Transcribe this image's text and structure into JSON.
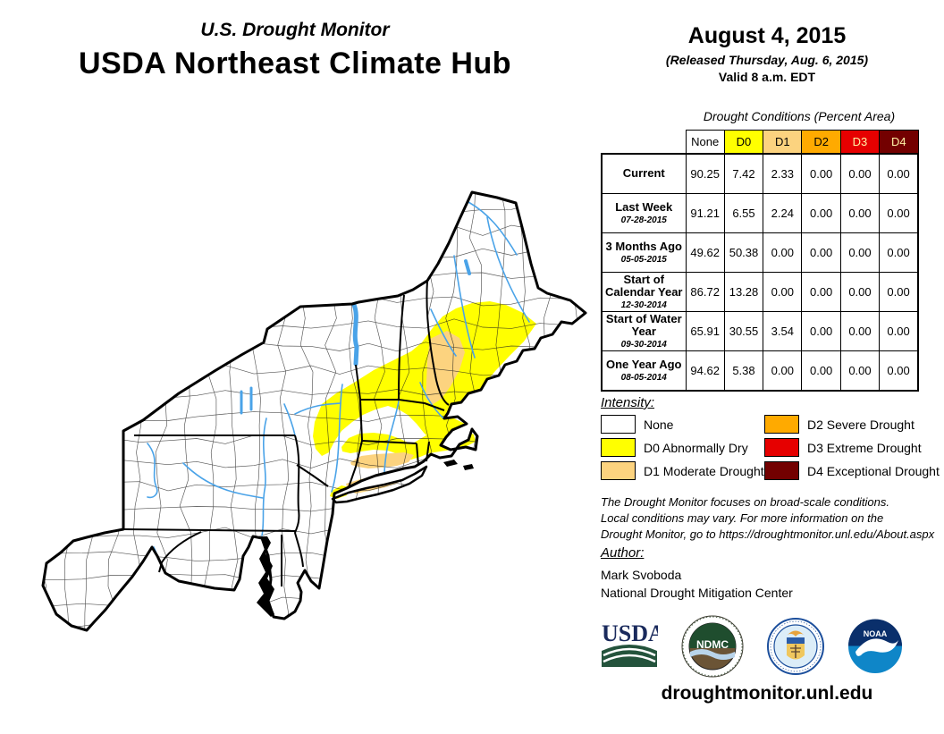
{
  "header": {
    "kicker": "U.S. Drought Monitor",
    "title": "USDA Northeast Climate Hub",
    "date": "August 4, 2015",
    "released": "(Released Thursday, Aug. 6, 2015)",
    "valid": "Valid 8 a.m. EDT"
  },
  "table": {
    "title": "Drought Conditions (Percent Area)",
    "columns": [
      "None",
      "D0",
      "D1",
      "D2",
      "D3",
      "D4"
    ],
    "rows": [
      {
        "label": "Current",
        "date": "",
        "values": [
          "90.25",
          "7.42",
          "2.33",
          "0.00",
          "0.00",
          "0.00"
        ]
      },
      {
        "label": "Last Week",
        "date": "07-28-2015",
        "values": [
          "91.21",
          "6.55",
          "2.24",
          "0.00",
          "0.00",
          "0.00"
        ]
      },
      {
        "label": "3 Months Ago",
        "date": "05-05-2015",
        "values": [
          "49.62",
          "50.38",
          "0.00",
          "0.00",
          "0.00",
          "0.00"
        ]
      },
      {
        "label": "Start of Calendar Year",
        "date": "12-30-2014",
        "values": [
          "86.72",
          "13.28",
          "0.00",
          "0.00",
          "0.00",
          "0.00"
        ]
      },
      {
        "label": "Start of Water Year",
        "date": "09-30-2014",
        "values": [
          "65.91",
          "30.55",
          "3.54",
          "0.00",
          "0.00",
          "0.00"
        ]
      },
      {
        "label": "One Year Ago",
        "date": "08-05-2014",
        "values": [
          "94.62",
          "5.38",
          "0.00",
          "0.00",
          "0.00",
          "0.00"
        ]
      }
    ]
  },
  "legend": {
    "title": "Intensity:",
    "items": [
      {
        "label": "None",
        "color": "#FFFFFF"
      },
      {
        "label": "D0 Abnormally Dry",
        "color": "#FFFF00"
      },
      {
        "label": "D1 Moderate Drought",
        "color": "#FCD37F"
      },
      {
        "label": "D2 Severe Drought",
        "color": "#FFAA00"
      },
      {
        "label": "D3 Extreme Drought",
        "color": "#E60000"
      },
      {
        "label": "D4 Exceptional Drought",
        "color": "#730000"
      }
    ]
  },
  "notes": {
    "line1": "The Drought Monitor focuses on broad-scale conditions.",
    "line2": "Local conditions may vary. For more information on the",
    "line3": "Drought Monitor, go to https://droughtmonitor.unl.edu/About.aspx"
  },
  "author": {
    "heading": "Author:",
    "name": "Mark Svoboda",
    "org": "National Drought Mitigation Center"
  },
  "logos": {
    "usda_text": "USDA",
    "ndmc_text": "NDMC",
    "noaa_text": "NOAA"
  },
  "footer": {
    "url": "droughtmonitor.unl.edu"
  },
  "colors": {
    "none": "#FFFFFF",
    "d0": "#FFFF00",
    "d1": "#FCD37F",
    "d2": "#FFAA00",
    "d3": "#E60000",
    "d4": "#730000",
    "river_blue": "#4AA3E8",
    "table_d3d4_text": "#FFF3A6"
  }
}
